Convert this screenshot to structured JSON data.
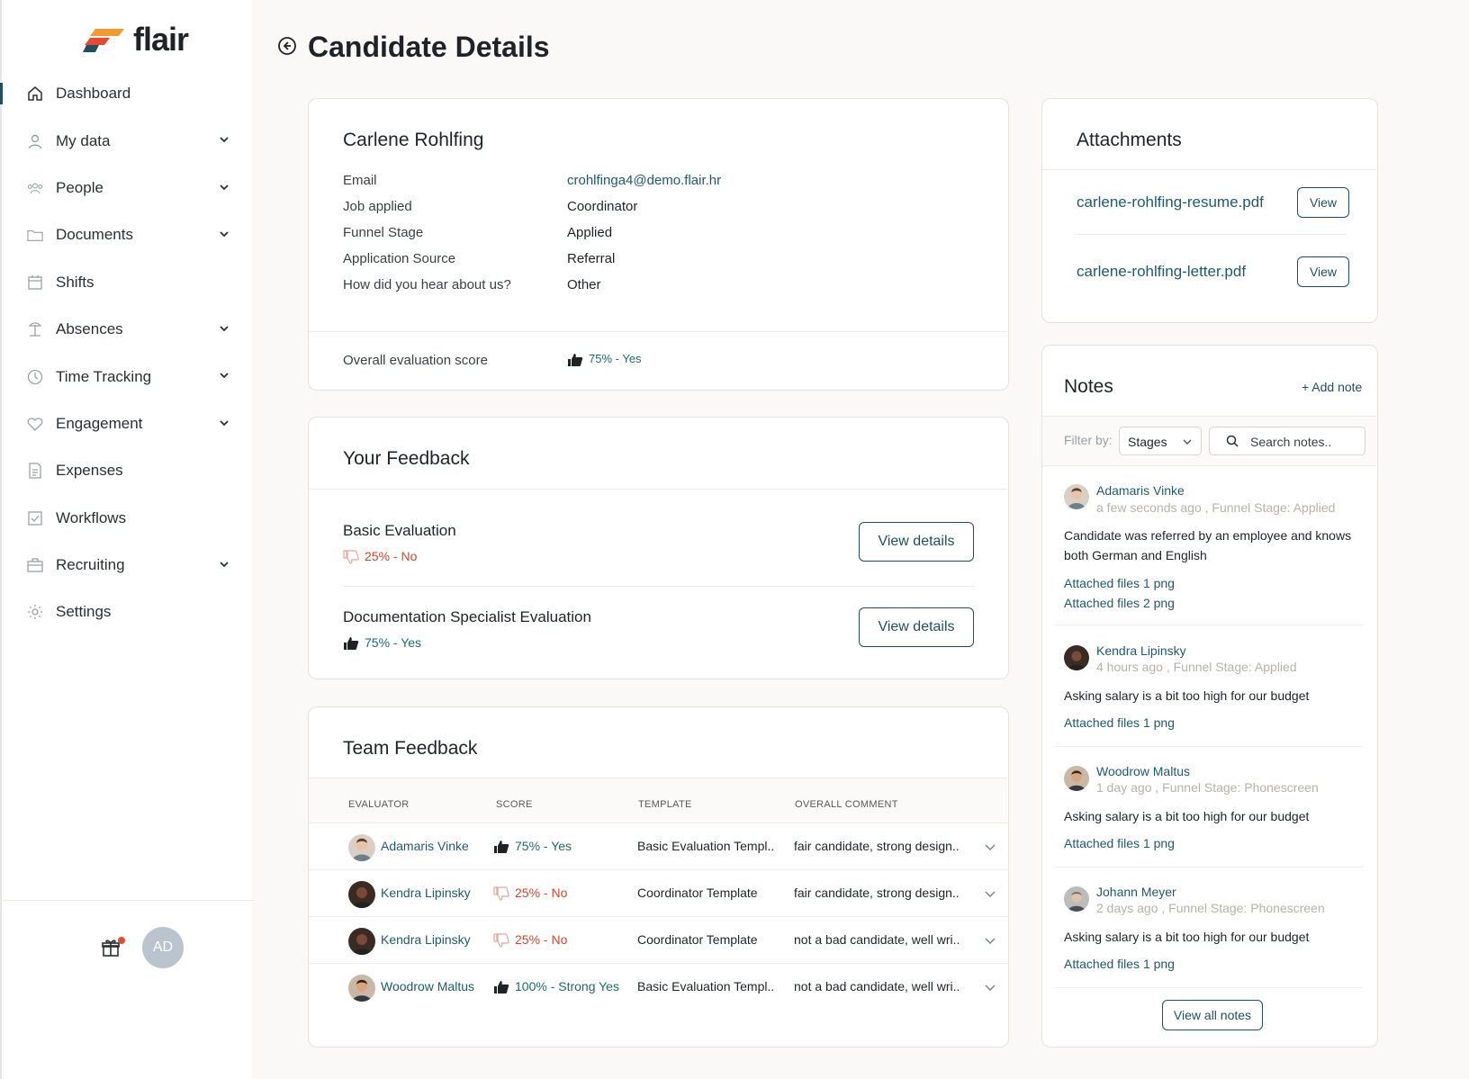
{
  "app": {
    "logo_text": "flair",
    "brand_colors": [
      "#e84a2f",
      "#f29a2e",
      "#1e5060"
    ]
  },
  "sidebar": {
    "items": [
      {
        "label": "Dashboard",
        "icon": "home-icon",
        "active": true,
        "expandable": false
      },
      {
        "label": "My data",
        "icon": "user-icon",
        "expandable": true
      },
      {
        "label": "People",
        "icon": "people-icon",
        "expandable": true
      },
      {
        "label": "Documents",
        "icon": "folder-icon",
        "expandable": true
      },
      {
        "label": "Shifts",
        "icon": "calendar-icon",
        "expandable": false
      },
      {
        "label": "Absences",
        "icon": "beach-icon",
        "expandable": true
      },
      {
        "label": "Time Tracking",
        "icon": "clock-icon",
        "expandable": true
      },
      {
        "label": "Engagement",
        "icon": "heart-icon",
        "expandable": true
      },
      {
        "label": "Expenses",
        "icon": "receipt-icon",
        "expandable": false
      },
      {
        "label": "Workflows",
        "icon": "checkbox-icon",
        "expandable": false
      },
      {
        "label": "Recruiting",
        "icon": "briefcase-icon",
        "expandable": true
      },
      {
        "label": "Settings",
        "icon": "gear-icon",
        "expandable": false
      }
    ],
    "user_initials": "AD"
  },
  "page": {
    "title": "Candidate Details"
  },
  "candidate": {
    "name": "Carlene Rohlfing",
    "fields": [
      {
        "key": "Email",
        "value": "crohlfinga4@demo.flair.hr",
        "link": true
      },
      {
        "key": "Job applied",
        "value": "Coordinator"
      },
      {
        "key": "Funnel Stage",
        "value": "Applied"
      },
      {
        "key": "Application Source",
        "value": "Referral"
      },
      {
        "key": "How did you hear about us?",
        "value": "Other"
      }
    ],
    "overall_label": "Overall evaluation score",
    "overall_score": "75% - Yes"
  },
  "your_feedback": {
    "title": "Your Feedback",
    "items": [
      {
        "title": "Basic Evaluation",
        "score": "25% - No",
        "positive": false,
        "button": "View details"
      },
      {
        "title": "Documentation Specialist Evaluation",
        "score": "75% - Yes",
        "positive": true,
        "button": "View details"
      }
    ]
  },
  "team_feedback": {
    "title": "Team Feedback",
    "columns": [
      "EVALUATOR",
      "SCORE",
      "TEMPLATE",
      "OVERALL COMMENT"
    ],
    "rows": [
      {
        "evaluator": "Adamaris Vinke",
        "score": "75% - Yes",
        "positive": true,
        "template": "Basic Evaluation Templ..",
        "comment": "fair candidate, strong design.."
      },
      {
        "evaluator": "Kendra Lipinsky",
        "score": "25% - No",
        "positive": false,
        "template": "Coordinator Template",
        "comment": "fair candidate, strong design.."
      },
      {
        "evaluator": "Kendra Lipinsky",
        "score": "25% - No",
        "positive": false,
        "template": "Coordinator Template",
        "comment": "not a bad candidate, well wri.."
      },
      {
        "evaluator": "Woodrow Maltus",
        "score": "100% - Strong Yes",
        "positive": true,
        "template": "Basic Evaluation Templ..",
        "comment": "not a bad candidate, well wri.."
      }
    ]
  },
  "attachments": {
    "title": "Attachments",
    "files": [
      {
        "name": "carlene-rohlfing-resume.pdf",
        "button": "View"
      },
      {
        "name": "carlene-rohlfing-letter.pdf",
        "button": "View"
      }
    ]
  },
  "notes": {
    "title": "Notes",
    "add_label": "+ Add note",
    "filter_label": "Filter by:",
    "filter_value": "Stages",
    "search_placeholder": "Search notes..",
    "items": [
      {
        "author": "Adamaris Vinke",
        "meta": "a few seconds ago , Funnel Stage: Applied",
        "text": "Candidate was referred by an employee and knows both German and English",
        "attachments": [
          "Attached files 1 png",
          "Attached files 2 png"
        ]
      },
      {
        "author": "Kendra Lipinsky",
        "meta": "4 hours ago , Funnel Stage: Applied",
        "text": "Asking salary is a bit too high for our budget",
        "attachments": [
          "Attached files 1 png"
        ]
      },
      {
        "author": "Woodrow Maltus",
        "meta": "1 day ago , Funnel Stage: Phonescreen",
        "text": "Asking salary is a bit too high for our budget",
        "attachments": [
          "Attached files 1 png"
        ]
      },
      {
        "author": "Johann Meyer",
        "meta": "2 days ago , Funnel Stage: Phonescreen",
        "text": "Asking salary is a bit too high for our budget",
        "attachments": [
          "Attached files 1 png"
        ]
      }
    ],
    "view_all_label": "View all notes"
  }
}
